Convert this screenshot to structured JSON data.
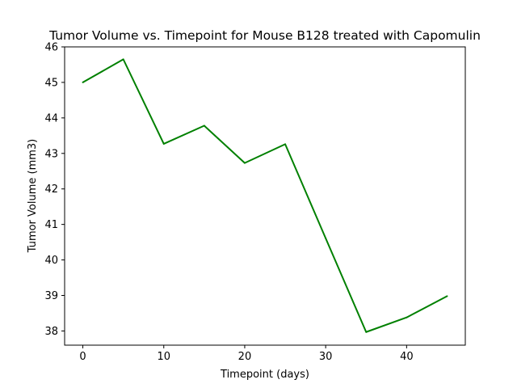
{
  "chart_data": {
    "type": "line",
    "title": "Tumor Volume vs. Timepoint for Mouse B128 treated with Capomulin",
    "xlabel": "Timepoint (days)",
    "ylabel": "Tumor Volume (mm3)",
    "x": [
      0,
      5,
      10,
      15,
      20,
      25,
      30,
      35,
      40,
      45
    ],
    "series": [
      {
        "values": [
          45.0,
          45.65,
          43.27,
          43.78,
          42.73,
          43.26,
          40.61,
          37.97,
          38.38,
          38.98
        ],
        "color": "#008000"
      }
    ],
    "xlim": [
      -2.25,
      47.25
    ],
    "ylim": [
      37.6,
      46.0
    ],
    "xticks": [
      0,
      10,
      20,
      30,
      40
    ],
    "yticks": [
      38,
      39,
      40,
      41,
      42,
      43,
      44,
      45,
      46
    ],
    "grid": false
  }
}
